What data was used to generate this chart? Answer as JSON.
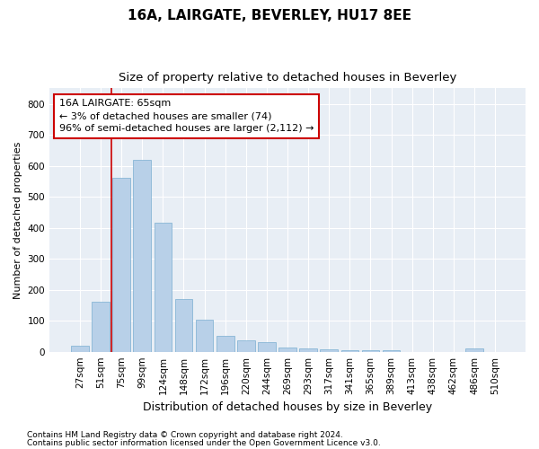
{
  "title1": "16A, LAIRGATE, BEVERLEY, HU17 8EE",
  "title2": "Size of property relative to detached houses in Beverley",
  "xlabel": "Distribution of detached houses by size in Beverley",
  "ylabel": "Number of detached properties",
  "footnote1": "Contains HM Land Registry data © Crown copyright and database right 2024.",
  "footnote2": "Contains public sector information licensed under the Open Government Licence v3.0.",
  "categories": [
    "27sqm",
    "51sqm",
    "75sqm",
    "99sqm",
    "124sqm",
    "148sqm",
    "172sqm",
    "196sqm",
    "220sqm",
    "244sqm",
    "269sqm",
    "293sqm",
    "317sqm",
    "341sqm",
    "365sqm",
    "389sqm",
    "413sqm",
    "438sqm",
    "462sqm",
    "486sqm",
    "510sqm"
  ],
  "values": [
    18,
    162,
    562,
    618,
    415,
    170,
    103,
    50,
    38,
    31,
    14,
    10,
    7,
    5,
    5,
    5,
    0,
    0,
    0,
    10,
    0
  ],
  "bar_color": "#b8d0e8",
  "bar_edge_color": "#7aaed0",
  "vline_x": 1.5,
  "vline_color": "#cc0000",
  "annotation_text": "16A LAIRGATE: 65sqm\n← 3% of detached houses are smaller (74)\n96% of semi-detached houses are larger (2,112) →",
  "annotation_box_facecolor": "#ffffff",
  "annotation_box_edgecolor": "#cc0000",
  "ylim": [
    0,
    850
  ],
  "yticks": [
    0,
    100,
    200,
    300,
    400,
    500,
    600,
    700,
    800
  ],
  "bg_color": "#e8eef5",
  "fig_bg_color": "#ffffff",
  "title1_fontsize": 11,
  "title2_fontsize": 9.5,
  "xlabel_fontsize": 9,
  "ylabel_fontsize": 8,
  "tick_fontsize": 7.5,
  "footnote_fontsize": 6.5,
  "annotation_fontsize": 8
}
